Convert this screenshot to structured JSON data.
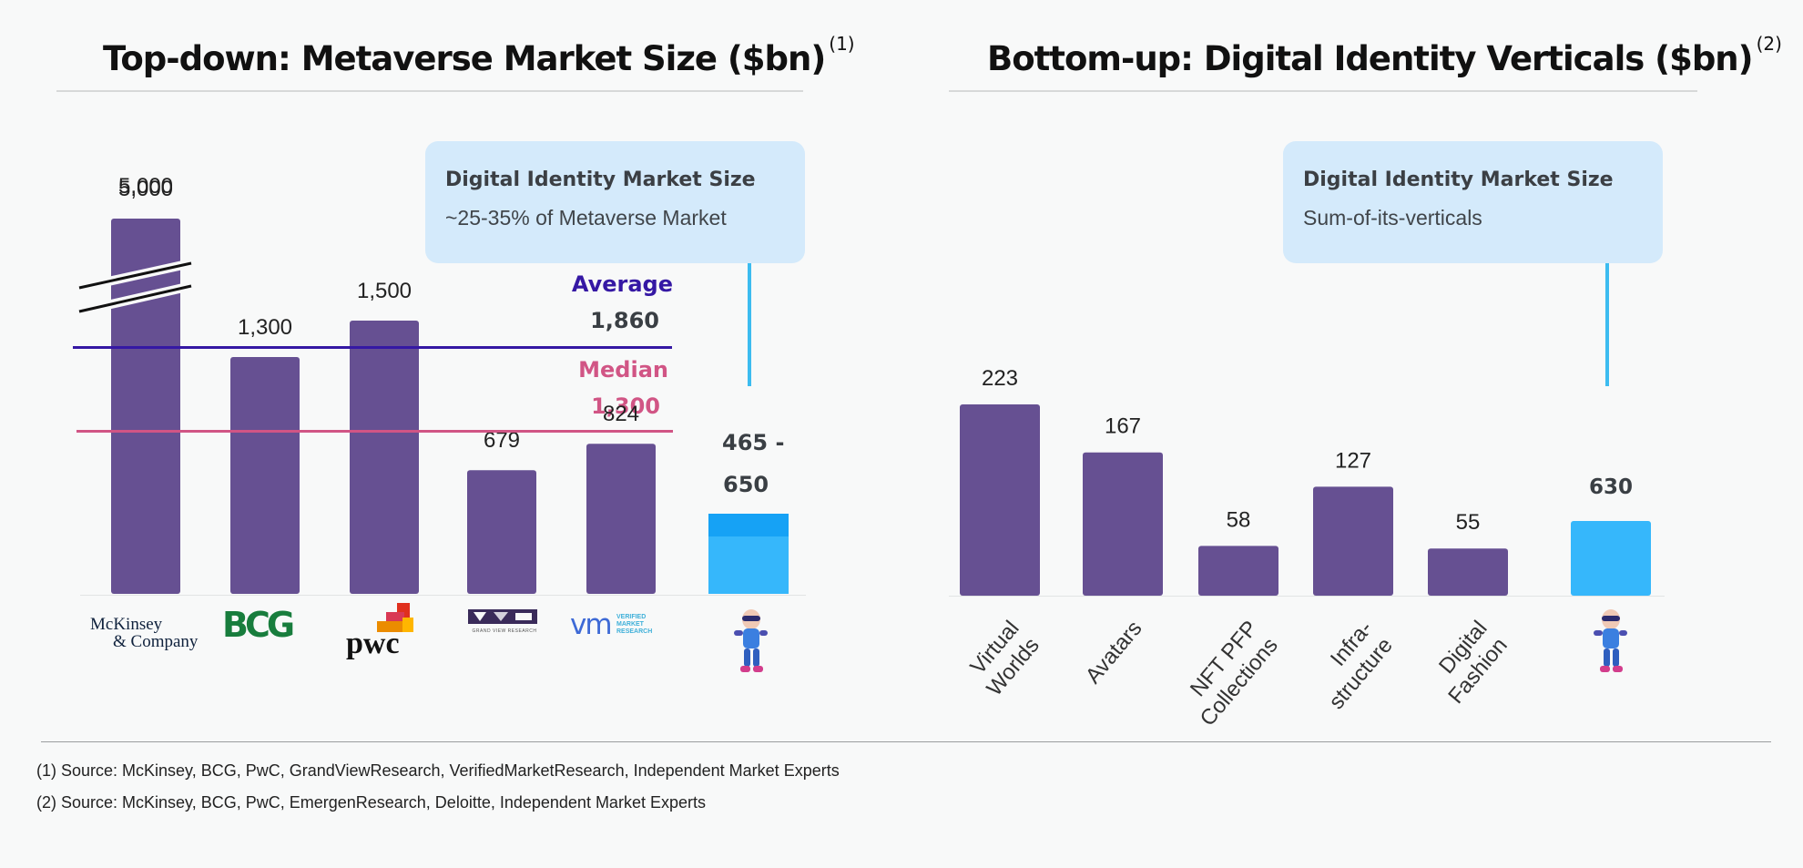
{
  "left_chart": {
    "title": "Top-down: Metaverse Market Size ($bn)",
    "title_note": "(1)",
    "callout_head": "Digital Identity Market Size",
    "callout_sub": "~25-35% of Metaverse Market",
    "average_label": "Average",
    "average_value": "1,860",
    "median_label": "Median",
    "median_value": "1,300",
    "range_top": "465 -",
    "range_bottom": "650",
    "logos": {
      "mckinsey_line1": "McKinsey",
      "mckinsey_line2": "& Company",
      "bcg": "BCG",
      "pwc": "pwc",
      "gvr_caption": "GRAND VIEW RESEARCH",
      "vmr_mark": "vm",
      "vmr_line1": "VERIFIED",
      "vmr_line2": "MARKET",
      "vmr_line3": "RESEARCH"
    }
  },
  "right_chart": {
    "title": "Bottom-up: Digital Identity Verticals ($bn)",
    "title_note": "(2)",
    "callout_head": "Digital Identity Market Size",
    "callout_sub": "Sum-of-its-verticals",
    "total_label": "630"
  },
  "colors": {
    "bar": "#665092",
    "highlight": "#36b7fb",
    "highlight_top": "#16a2f5",
    "average": "#3518a4",
    "median": "#d15585"
  },
  "chart_data": [
    {
      "type": "bar",
      "title": "Top-down: Metaverse Market Size ($bn)",
      "categories": [
        "McKinsey & Company",
        "BCG",
        "PwC",
        "Grand View Research",
        "Verified Market Research",
        "Digital Identity"
      ],
      "values": [
        5000,
        1300,
        1500,
        679,
        824,
        650
      ],
      "value_labels": [
        "5,000",
        "1,300",
        "1,500",
        "679",
        "824",
        "465 - 650"
      ],
      "range": {
        "category": "Digital Identity",
        "low": 465,
        "high": 650
      },
      "reference_lines": [
        {
          "name": "Average",
          "value": 1860
        },
        {
          "name": "Median",
          "value": 1300
        }
      ],
      "axis_break": true,
      "ylabel": "$bn"
    },
    {
      "type": "bar",
      "title": "Bottom-up: Digital Identity Verticals ($bn)",
      "categories": [
        "Virtual Worlds",
        "Avatars",
        "NFT PFP Collections",
        "Infra-structure",
        "Digital Fashion",
        "Digital Identity"
      ],
      "values": [
        223,
        167,
        58,
        127,
        55,
        630
      ],
      "value_labels": [
        "223",
        "167",
        "58",
        "127",
        "55",
        "630"
      ],
      "ylabel": "$bn"
    }
  ],
  "footnotes": [
    "(1) Source: McKinsey, BCG, PwC, GrandViewResearch, VerifiedMarketResearch, Independent Market Experts",
    "(2) Source: McKinsey, BCG, PwC, EmergenResearch, Deloitte, Independent Market Experts"
  ]
}
